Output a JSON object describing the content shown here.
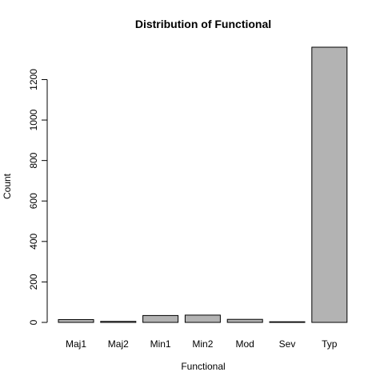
{
  "chart_data": {
    "type": "bar",
    "title": "Distribution of Functional",
    "xlabel": "Functional",
    "ylabel": "Count",
    "categories": [
      "Maj1",
      "Maj2",
      "Min1",
      "Min2",
      "Mod",
      "Sev",
      "Typ"
    ],
    "values": [
      14,
      5,
      34,
      36,
      15,
      1,
      1360
    ],
    "ylim": [
      0,
      1360
    ],
    "yticks": [
      "0",
      "200",
      "400",
      "600",
      "800",
      "1000",
      "1200"
    ],
    "bar_color": "#b3b3b3",
    "grid": false,
    "legend": "none"
  }
}
